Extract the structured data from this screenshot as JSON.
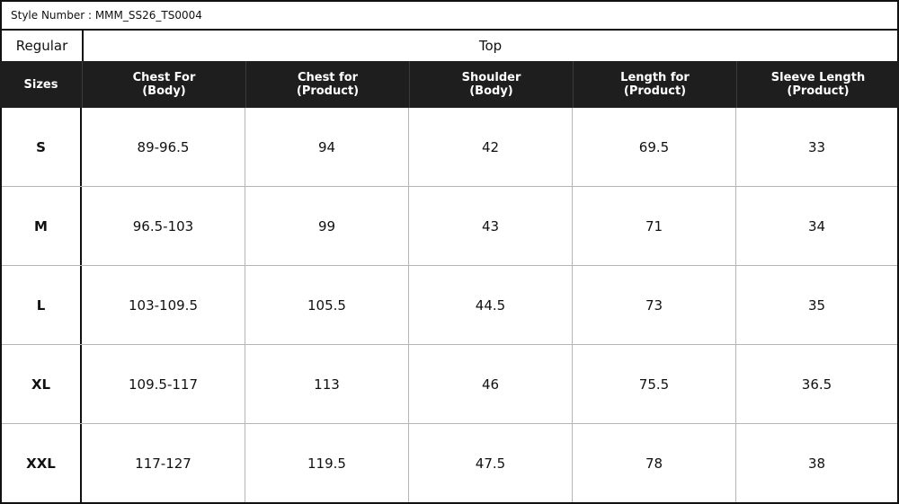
{
  "style_number_label": "Style Number : MMM_SS26_TS0004",
  "fit_label": "Regular",
  "garment_label": "Top",
  "headers": [
    [
      "Sizes"
    ],
    [
      "Chest For",
      "(Body)"
    ],
    [
      "Chest for",
      "(Product)"
    ],
    [
      "Shoulder",
      "(Body)"
    ],
    [
      "Length for",
      "(Product)"
    ],
    [
      "Sleeve Length",
      "(Product)"
    ]
  ],
  "rows": [
    [
      "S",
      "89-96.5",
      "94",
      "42",
      "69.5",
      "33"
    ],
    [
      "M",
      "96.5-103",
      "99",
      "43",
      "71",
      "34"
    ],
    [
      "L",
      "103-109.5",
      "105.5",
      "44.5",
      "73",
      "35"
    ],
    [
      "XL",
      "109.5-117",
      "113",
      "46",
      "75.5",
      "36.5"
    ],
    [
      "XXL",
      "117-127",
      "119.5",
      "47.5",
      "78",
      "38"
    ]
  ],
  "colors": {
    "header_bg": "#1e1e1e",
    "header_text": "#ffffff",
    "grid_line": "#b5b5b5",
    "border": "#111111"
  }
}
